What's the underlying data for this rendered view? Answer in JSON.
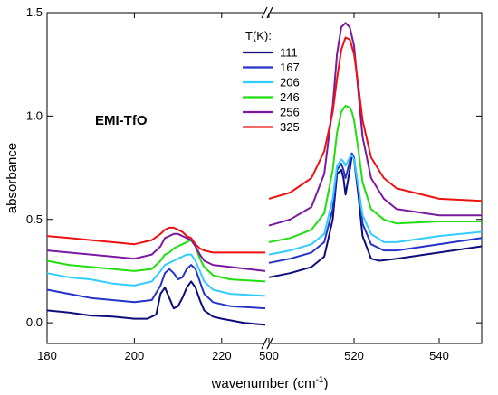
{
  "chart_data": {
    "type": "line",
    "xlabel": "wavenumber (cm",
    "xlabel_sup": "-1",
    "xlabel_close": ")",
    "ylabel": "absorbance",
    "annotation": "EMI-TfO",
    "legend_title": "T(K):",
    "legend_position": "top-right of left panel",
    "grid": false,
    "ylim": [
      -0.1,
      1.5
    ],
    "y_ticks": [
      "0.0",
      "0.5",
      "1.0",
      "1.5"
    ],
    "y_tick_values": [
      0.0,
      0.5,
      1.0,
      1.5
    ],
    "panels": [
      {
        "xlim": [
          180,
          230
        ],
        "x_ticks": [
          "180",
          "200",
          "220"
        ],
        "x_tick_values": [
          180,
          200,
          220
        ]
      },
      {
        "xlim": [
          500,
          550
        ],
        "x_ticks": [
          "500",
          "520",
          "540"
        ],
        "x_tick_values": [
          500,
          520,
          540
        ]
      }
    ],
    "series": [
      {
        "name": "111",
        "color": "#0c0c7a",
        "left": [
          [
            180,
            0.06
          ],
          [
            185,
            0.05
          ],
          [
            190,
            0.035
          ],
          [
            195,
            0.03
          ],
          [
            200,
            0.02
          ],
          [
            203,
            0.02
          ],
          [
            205,
            0.04
          ],
          [
            206,
            0.14
          ],
          [
            207,
            0.17
          ],
          [
            208,
            0.12
          ],
          [
            209,
            0.07
          ],
          [
            210,
            0.08
          ],
          [
            211,
            0.12
          ],
          [
            212,
            0.17
          ],
          [
            213,
            0.2
          ],
          [
            214,
            0.17
          ],
          [
            215,
            0.11
          ],
          [
            216,
            0.06
          ],
          [
            218,
            0.03
          ],
          [
            220,
            0.02
          ],
          [
            225,
            0.0
          ],
          [
            230,
            -0.01
          ]
        ],
        "right": [
          [
            500,
            0.22
          ],
          [
            505,
            0.24
          ],
          [
            510,
            0.27
          ],
          [
            513,
            0.32
          ],
          [
            515,
            0.5
          ],
          [
            516,
            0.72
          ],
          [
            517,
            0.74
          ],
          [
            517.5,
            0.7
          ],
          [
            518,
            0.62
          ],
          [
            519,
            0.74
          ],
          [
            519.5,
            0.81
          ],
          [
            520,
            0.79
          ],
          [
            521,
            0.62
          ],
          [
            522,
            0.42
          ],
          [
            524,
            0.31
          ],
          [
            526,
            0.3
          ],
          [
            530,
            0.31
          ],
          [
            540,
            0.34
          ],
          [
            550,
            0.37
          ]
        ]
      },
      {
        "name": "167",
        "color": "#2633c8",
        "left": [
          [
            180,
            0.16
          ],
          [
            185,
            0.14
          ],
          [
            190,
            0.12
          ],
          [
            195,
            0.11
          ],
          [
            200,
            0.1
          ],
          [
            204,
            0.11
          ],
          [
            206,
            0.18
          ],
          [
            207,
            0.24
          ],
          [
            208,
            0.26
          ],
          [
            209,
            0.24
          ],
          [
            210,
            0.21
          ],
          [
            211,
            0.22
          ],
          [
            212,
            0.26
          ],
          [
            213,
            0.28
          ],
          [
            214,
            0.26
          ],
          [
            215,
            0.2
          ],
          [
            216,
            0.14
          ],
          [
            218,
            0.1
          ],
          [
            222,
            0.08
          ],
          [
            230,
            0.07
          ]
        ],
        "right": [
          [
            500,
            0.29
          ],
          [
            505,
            0.31
          ],
          [
            510,
            0.34
          ],
          [
            513,
            0.39
          ],
          [
            515,
            0.55
          ],
          [
            516,
            0.74
          ],
          [
            517,
            0.77
          ],
          [
            517.5,
            0.74
          ],
          [
            518,
            0.7
          ],
          [
            519,
            0.78
          ],
          [
            519.5,
            0.82
          ],
          [
            520,
            0.8
          ],
          [
            521,
            0.65
          ],
          [
            522,
            0.48
          ],
          [
            524,
            0.38
          ],
          [
            527,
            0.35
          ],
          [
            530,
            0.35
          ],
          [
            540,
            0.38
          ],
          [
            550,
            0.41
          ]
        ]
      },
      {
        "name": "206",
        "color": "#33ccff",
        "left": [
          [
            180,
            0.24
          ],
          [
            185,
            0.22
          ],
          [
            190,
            0.21
          ],
          [
            195,
            0.19
          ],
          [
            200,
            0.18
          ],
          [
            204,
            0.2
          ],
          [
            206,
            0.25
          ],
          [
            207,
            0.28
          ],
          [
            208,
            0.29
          ],
          [
            209,
            0.3
          ],
          [
            210,
            0.31
          ],
          [
            211,
            0.32
          ],
          [
            212,
            0.33
          ],
          [
            213,
            0.33
          ],
          [
            214,
            0.3
          ],
          [
            215,
            0.25
          ],
          [
            216,
            0.2
          ],
          [
            218,
            0.16
          ],
          [
            222,
            0.14
          ],
          [
            230,
            0.13
          ]
        ],
        "right": [
          [
            500,
            0.33
          ],
          [
            505,
            0.35
          ],
          [
            510,
            0.38
          ],
          [
            513,
            0.43
          ],
          [
            515,
            0.6
          ],
          [
            516,
            0.76
          ],
          [
            517,
            0.79
          ],
          [
            517.5,
            0.78
          ],
          [
            518,
            0.76
          ],
          [
            519,
            0.8
          ],
          [
            519.5,
            0.81
          ],
          [
            520,
            0.79
          ],
          [
            521,
            0.66
          ],
          [
            522,
            0.52
          ],
          [
            524,
            0.43
          ],
          [
            527,
            0.39
          ],
          [
            530,
            0.39
          ],
          [
            540,
            0.42
          ],
          [
            550,
            0.44
          ]
        ]
      },
      {
        "name": "246",
        "color": "#22dd11",
        "left": [
          [
            180,
            0.3
          ],
          [
            185,
            0.28
          ],
          [
            190,
            0.27
          ],
          [
            195,
            0.26
          ],
          [
            200,
            0.25
          ],
          [
            204,
            0.26
          ],
          [
            206,
            0.3
          ],
          [
            207,
            0.33
          ],
          [
            208,
            0.34
          ],
          [
            209,
            0.36
          ],
          [
            210,
            0.37
          ],
          [
            211,
            0.38
          ],
          [
            212,
            0.39
          ],
          [
            213,
            0.4
          ],
          [
            214,
            0.37
          ],
          [
            215,
            0.31
          ],
          [
            216,
            0.27
          ],
          [
            218,
            0.23
          ],
          [
            222,
            0.21
          ],
          [
            230,
            0.2
          ]
        ],
        "right": [
          [
            500,
            0.39
          ],
          [
            505,
            0.41
          ],
          [
            510,
            0.45
          ],
          [
            513,
            0.53
          ],
          [
            515,
            0.74
          ],
          [
            516,
            0.92
          ],
          [
            517,
            1.02
          ],
          [
            518,
            1.05
          ],
          [
            519,
            1.04
          ],
          [
            519.5,
            1.02
          ],
          [
            520,
            0.98
          ],
          [
            521,
            0.84
          ],
          [
            522,
            0.68
          ],
          [
            524,
            0.55
          ],
          [
            527,
            0.5
          ],
          [
            530,
            0.48
          ],
          [
            540,
            0.49
          ],
          [
            550,
            0.49
          ]
        ]
      },
      {
        "name": "256",
        "color": "#7a1aa0",
        "left": [
          [
            180,
            0.35
          ],
          [
            185,
            0.34
          ],
          [
            190,
            0.33
          ],
          [
            195,
            0.32
          ],
          [
            200,
            0.31
          ],
          [
            204,
            0.33
          ],
          [
            206,
            0.37
          ],
          [
            207,
            0.41
          ],
          [
            208,
            0.42
          ],
          [
            209,
            0.43
          ],
          [
            210,
            0.43
          ],
          [
            211,
            0.42
          ],
          [
            212,
            0.41
          ],
          [
            213,
            0.4
          ],
          [
            214,
            0.37
          ],
          [
            215,
            0.33
          ],
          [
            216,
            0.3
          ],
          [
            218,
            0.28
          ],
          [
            222,
            0.27
          ],
          [
            230,
            0.25
          ]
        ],
        "right": [
          [
            500,
            0.47
          ],
          [
            505,
            0.5
          ],
          [
            510,
            0.56
          ],
          [
            513,
            0.72
          ],
          [
            515,
            1.05
          ],
          [
            516,
            1.3
          ],
          [
            517,
            1.43
          ],
          [
            518,
            1.45
          ],
          [
            519,
            1.43
          ],
          [
            520,
            1.34
          ],
          [
            521,
            1.12
          ],
          [
            522,
            0.9
          ],
          [
            524,
            0.7
          ],
          [
            527,
            0.6
          ],
          [
            530,
            0.55
          ],
          [
            540,
            0.52
          ],
          [
            550,
            0.52
          ]
        ]
      },
      {
        "name": "325",
        "color": "#ee1111",
        "left": [
          [
            180,
            0.42
          ],
          [
            185,
            0.41
          ],
          [
            190,
            0.4
          ],
          [
            195,
            0.39
          ],
          [
            200,
            0.38
          ],
          [
            204,
            0.4
          ],
          [
            206,
            0.43
          ],
          [
            207,
            0.45
          ],
          [
            208,
            0.46
          ],
          [
            209,
            0.46
          ],
          [
            210,
            0.45
          ],
          [
            211,
            0.44
          ],
          [
            212,
            0.42
          ],
          [
            213,
            0.41
          ],
          [
            214,
            0.38
          ],
          [
            215,
            0.36
          ],
          [
            216,
            0.35
          ],
          [
            218,
            0.34
          ],
          [
            222,
            0.34
          ],
          [
            230,
            0.34
          ]
        ],
        "right": [
          [
            500,
            0.6
          ],
          [
            505,
            0.63
          ],
          [
            510,
            0.7
          ],
          [
            513,
            0.83
          ],
          [
            515,
            1.02
          ],
          [
            516,
            1.18
          ],
          [
            517,
            1.32
          ],
          [
            518,
            1.38
          ],
          [
            519,
            1.37
          ],
          [
            520,
            1.3
          ],
          [
            521,
            1.15
          ],
          [
            522,
            0.98
          ],
          [
            524,
            0.8
          ],
          [
            527,
            0.7
          ],
          [
            530,
            0.65
          ],
          [
            540,
            0.6
          ],
          [
            550,
            0.59
          ]
        ]
      }
    ]
  }
}
